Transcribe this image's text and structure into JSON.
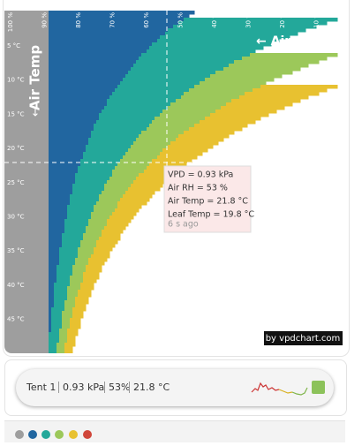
{
  "axis": {
    "y_title": "Air Temp",
    "y_arrow": "↓",
    "x_title": "← Air RH",
    "y_labels": [
      "5 °C",
      "10 °C",
      "15 °C",
      "20 °C",
      "25 °C",
      "30 °C",
      "35 °C",
      "40 °C",
      "45 °C"
    ],
    "x_labels": [
      "100 %",
      "90 %",
      "80 %",
      "70 %",
      "60 %",
      "50 %",
      "40 %",
      "30 %",
      "20 %",
      "10 %"
    ]
  },
  "tooltip": {
    "lines": [
      "VPD = 0.93 kPa",
      "Air RH = 53 %",
      "Air Temp = 21.8 °C",
      "Leaf Temp = 19.8 °C"
    ],
    "time": "6 s ago"
  },
  "credit": "by vpdchart.com",
  "status": {
    "name": "Tent 1",
    "vpd": "0.93 kPa",
    "rh": "53%",
    "temp": "21.8 °C"
  }
}
